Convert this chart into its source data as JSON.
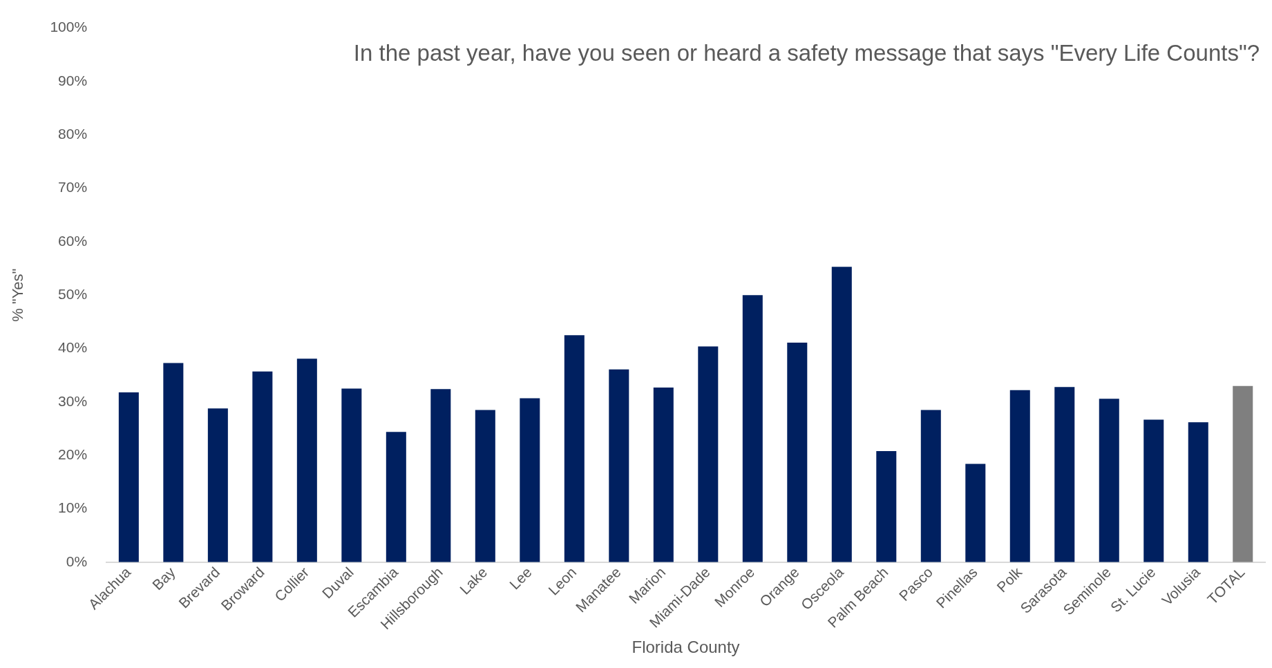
{
  "chart_data": {
    "type": "bar",
    "title": "In the past year, have you seen or heard a safety message that says \"Every Life Counts\"?",
    "xlabel": "Florida County",
    "ylabel": "% \"Yes\"",
    "categories": [
      "Alachua",
      "Bay",
      "Brevard",
      "Broward",
      "Collier",
      "Duval",
      "Escambia",
      "Hillsborough",
      "Lake",
      "Lee",
      "Leon",
      "Manatee",
      "Marion",
      "Miami-Dade",
      "Monroe",
      "Orange",
      "Osceola",
      "Palm Beach",
      "Pasco",
      "Pinellas",
      "Polk",
      "Sarasota",
      "Seminole",
      "St. Lucie",
      "Volusia",
      "TOTAL"
    ],
    "values": [
      31.8,
      37.3,
      28.8,
      35.7,
      38.1,
      32.5,
      24.4,
      32.4,
      28.5,
      30.7,
      42.5,
      36.1,
      32.7,
      40.4,
      50.0,
      41.1,
      55.3,
      20.8,
      28.5,
      18.4,
      32.2,
      32.8,
      30.6,
      26.7,
      26.2,
      33.0
    ],
    "colors": [
      "#002060",
      "#002060",
      "#002060",
      "#002060",
      "#002060",
      "#002060",
      "#002060",
      "#002060",
      "#002060",
      "#002060",
      "#002060",
      "#002060",
      "#002060",
      "#002060",
      "#002060",
      "#002060",
      "#002060",
      "#002060",
      "#002060",
      "#002060",
      "#002060",
      "#002060",
      "#002060",
      "#002060",
      "#002060",
      "#7f7f7f"
    ],
    "ylim": [
      0,
      100
    ],
    "yticks": [
      {
        "value": 0,
        "label": "0%"
      },
      {
        "value": 10,
        "label": "10%"
      },
      {
        "value": 20,
        "label": "20%"
      },
      {
        "value": 30,
        "label": "30%"
      },
      {
        "value": 40,
        "label": "40%"
      },
      {
        "value": 50,
        "label": "50%"
      },
      {
        "value": 60,
        "label": "60%"
      },
      {
        "value": 70,
        "label": "70%"
      },
      {
        "value": 80,
        "label": "80%"
      },
      {
        "value": 90,
        "label": "90%"
      },
      {
        "value": 100,
        "label": "100%"
      }
    ],
    "grid": false,
    "legend": false
  }
}
